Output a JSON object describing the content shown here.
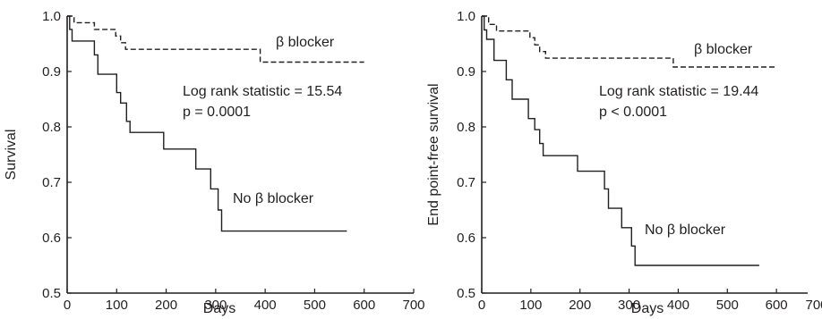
{
  "chart_data": [
    {
      "type": "line",
      "subtype": "kaplan-meier-step",
      "title": "",
      "xlabel": "Days",
      "ylabel": "Survival",
      "xlim": [
        0,
        700
      ],
      "ylim": [
        0.5,
        1.0
      ],
      "xticks": [
        "0",
        "100",
        "200",
        "300",
        "400",
        "500",
        "600",
        "700"
      ],
      "yticks": [
        "0.5",
        "0.6",
        "0.7",
        "0.8",
        "0.9",
        "1.0"
      ],
      "grid": false,
      "annotation": [
        "Log rank statistic = 15.54",
        "p = 0.0001"
      ],
      "series": [
        {
          "name": "β blocker",
          "style": "dashed",
          "points": [
            [
              0,
              1.0
            ],
            [
              14,
              1.0
            ],
            [
              14,
              0.988
            ],
            [
              55,
              0.988
            ],
            [
              55,
              0.976
            ],
            [
              98,
              0.976
            ],
            [
              98,
              0.964
            ],
            [
              108,
              0.964
            ],
            [
              108,
              0.952
            ],
            [
              118,
              0.952
            ],
            [
              118,
              0.94
            ],
            [
              390,
              0.94
            ],
            [
              390,
              0.917
            ],
            [
              600,
              0.917
            ]
          ]
        },
        {
          "name": "No β blocker",
          "style": "solid",
          "points": [
            [
              0,
              1.0
            ],
            [
              5,
              1.0
            ],
            [
              5,
              0.976
            ],
            [
              10,
              0.976
            ],
            [
              10,
              0.955
            ],
            [
              55,
              0.955
            ],
            [
              55,
              0.93
            ],
            [
              62,
              0.93
            ],
            [
              62,
              0.895
            ],
            [
              100,
              0.895
            ],
            [
              100,
              0.862
            ],
            [
              108,
              0.862
            ],
            [
              108,
              0.843
            ],
            [
              120,
              0.843
            ],
            [
              120,
              0.81
            ],
            [
              127,
              0.81
            ],
            [
              127,
              0.79
            ],
            [
              195,
              0.79
            ],
            [
              195,
              0.76
            ],
            [
              260,
              0.76
            ],
            [
              260,
              0.724
            ],
            [
              290,
              0.724
            ],
            [
              290,
              0.688
            ],
            [
              305,
              0.688
            ],
            [
              305,
              0.65
            ],
            [
              312,
              0.65
            ],
            [
              312,
              0.612
            ],
            [
              565,
              0.612
            ]
          ]
        }
      ]
    },
    {
      "type": "line",
      "subtype": "kaplan-meier-step",
      "title": "",
      "xlabel": "Days",
      "ylabel": "End point-free survival",
      "xlim": [
        0,
        700
      ],
      "ylim": [
        0.5,
        1.0
      ],
      "xticks": [
        "0",
        "100",
        "200",
        "300",
        "400",
        "500",
        "600",
        "700"
      ],
      "yticks": [
        "0.5",
        "0.6",
        "0.7",
        "0.8",
        "0.9",
        "1.0"
      ],
      "grid": false,
      "annotation": [
        "Log rank statistic = 19.44",
        "p < 0.0001"
      ],
      "series": [
        {
          "name": "β blocker",
          "style": "dashed",
          "points": [
            [
              0,
              1.0
            ],
            [
              14,
              1.0
            ],
            [
              14,
              0.985
            ],
            [
              30,
              0.985
            ],
            [
              30,
              0.973
            ],
            [
              98,
              0.973
            ],
            [
              98,
              0.961
            ],
            [
              108,
              0.961
            ],
            [
              108,
              0.948
            ],
            [
              118,
              0.948
            ],
            [
              118,
              0.936
            ],
            [
              130,
              0.936
            ],
            [
              130,
              0.924
            ],
            [
              390,
              0.924
            ],
            [
              390,
              0.908
            ],
            [
              600,
              0.908
            ]
          ]
        },
        {
          "name": "No β blocker",
          "style": "solid",
          "points": [
            [
              0,
              1.0
            ],
            [
              5,
              1.0
            ],
            [
              5,
              0.975
            ],
            [
              10,
              0.975
            ],
            [
              10,
              0.958
            ],
            [
              25,
              0.958
            ],
            [
              25,
              0.92
            ],
            [
              50,
              0.92
            ],
            [
              50,
              0.885
            ],
            [
              62,
              0.885
            ],
            [
              62,
              0.85
            ],
            [
              95,
              0.85
            ],
            [
              95,
              0.815
            ],
            [
              108,
              0.815
            ],
            [
              108,
              0.795
            ],
            [
              118,
              0.795
            ],
            [
              118,
              0.77
            ],
            [
              125,
              0.77
            ],
            [
              125,
              0.748
            ],
            [
              195,
              0.748
            ],
            [
              195,
              0.72
            ],
            [
              250,
              0.72
            ],
            [
              250,
              0.688
            ],
            [
              258,
              0.688
            ],
            [
              258,
              0.653
            ],
            [
              285,
              0.653
            ],
            [
              285,
              0.618
            ],
            [
              305,
              0.618
            ],
            [
              305,
              0.585
            ],
            [
              312,
              0.585
            ],
            [
              312,
              0.55
            ],
            [
              565,
              0.55
            ]
          ]
        }
      ]
    }
  ]
}
